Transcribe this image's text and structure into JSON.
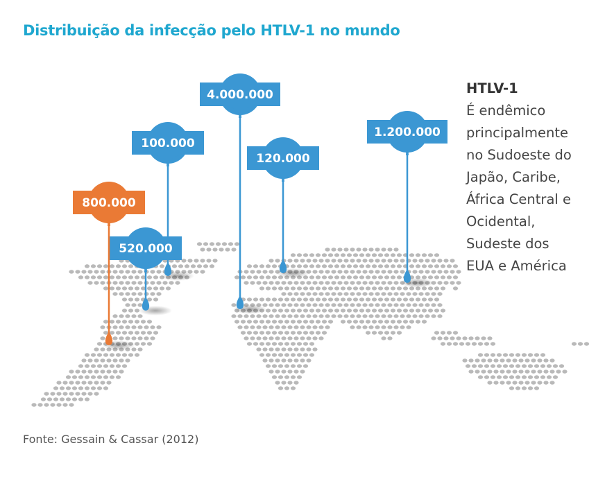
{
  "title": "Distribuição da infecção pelo HTLV-1 no mundo",
  "source": "Fonte: Gessain & Cassar (2012)",
  "sidebar": {
    "heading": "HTLV-1",
    "text": "É endêmico\nprincipalmente\nno Sudoeste do\nJapão, Caribe,\nÁfrica Central e\nOcidental,\nSudeste dos\nEUA e América"
  },
  "colors": {
    "title": "#1fa7cf",
    "marker_blue": "#3b97d3",
    "marker_orange": "#ea7a35",
    "map_dots": "#b9b9b9"
  },
  "markers": [
    {
      "id": "southeast-usa",
      "value": "100.000",
      "color": "blue"
    },
    {
      "id": "caribbean",
      "value": "520.000",
      "color": "blue"
    },
    {
      "id": "south-america",
      "value": "800.000",
      "color": "orange"
    },
    {
      "id": "central-west-africa",
      "value": "4.000.000",
      "color": "blue"
    },
    {
      "id": "middle-east",
      "value": "120.000",
      "color": "blue"
    },
    {
      "id": "japan",
      "value": "1.200.000",
      "color": "blue"
    }
  ]
}
